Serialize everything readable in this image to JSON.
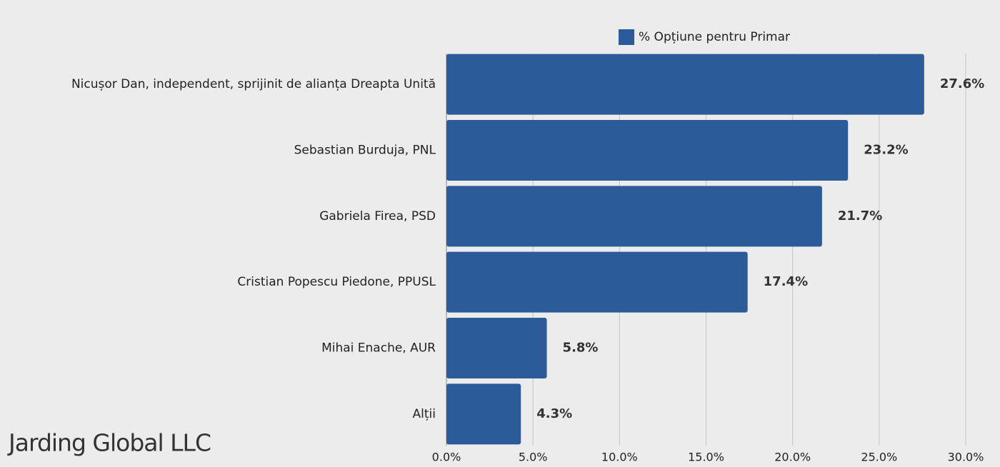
{
  "chart_data": {
    "type": "bar",
    "orientation": "horizontal",
    "categories": [
      "Nicușor Dan, independent, sprijinit de alianța Dreapta Unită",
      "Sebastian Burduja, PNL",
      "Gabriela Firea, PSD",
      "Cristian Popescu Piedone, PPUSL",
      "Mihai Enache, AUR",
      "Alții"
    ],
    "series": [
      {
        "name": "% Opțiune pentru Primar",
        "color": "#2b5c99",
        "values": [
          27.6,
          23.2,
          21.7,
          17.4,
          5.8,
          4.3
        ],
        "value_labels": [
          "27.6%",
          "23.2%",
          "21.7%",
          "17.4%",
          "5.8%",
          "4.3%"
        ]
      }
    ],
    "xlim": [
      0,
      30
    ],
    "xticks": [
      {
        "value": 0,
        "label": "0.0%"
      },
      {
        "value": 5,
        "label": "5.0%"
      },
      {
        "value": 10,
        "label": "10.0%"
      },
      {
        "value": 15,
        "label": "15.0%"
      },
      {
        "value": 20,
        "label": "20.0%"
      },
      {
        "value": 25,
        "label": "25.0%"
      },
      {
        "value": 30,
        "label": "30.0%"
      }
    ],
    "grid": true,
    "legend": "top",
    "watermark": "Jarding Global LLC"
  }
}
